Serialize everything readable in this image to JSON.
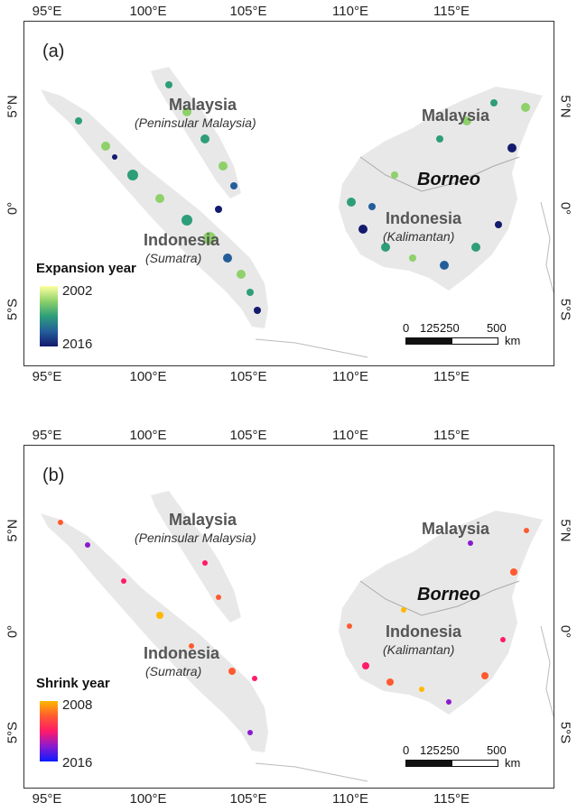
{
  "lon_ticks": [
    "95°E",
    "100°E",
    "105°E",
    "110°E",
    "115°E"
  ],
  "lat_ticks": [
    "5°N",
    "0°",
    "5°S"
  ],
  "labels": {
    "malaysia": "Malaysia",
    "peninsular": "(Peninsular Malaysia)",
    "indonesia": "Indonesia",
    "sumatra": "(Sumatra)",
    "kalimantan": "(Kalimantan)",
    "borneo": "Borneo"
  },
  "scalebar": {
    "n0": "0",
    "n1": "125",
    "n2": "250",
    "n3": "500",
    "unit": "km"
  },
  "panel_a": {
    "label": "(a)",
    "legend_title": "Expansion year",
    "legend_top": "2002",
    "legend_bottom": "2016",
    "colors": [
      "#ffffa0",
      "#8ed16a",
      "#2e9e7a",
      "#245e9a",
      "#141a6e"
    ]
  },
  "panel_b": {
    "label": "(b)",
    "legend_title": "Shrink year",
    "legend_top": "2008",
    "legend_bottom": "2016",
    "colors": [
      "#ffb800",
      "#ff5a30",
      "#ff1a6a",
      "#8a1ad0",
      "#0a1aff"
    ]
  }
}
